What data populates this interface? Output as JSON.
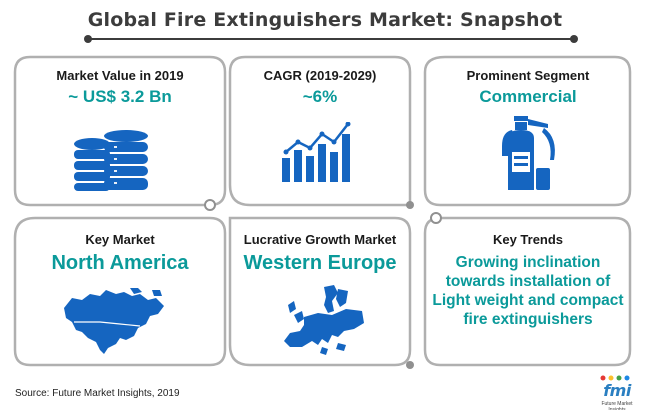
{
  "title": "Global Fire Extinguishers Market: Snapshot",
  "cards": [
    {
      "label": "Market Value in 2019",
      "value": "~ US$ 3.2 Bn",
      "icon": "database-stack-icon"
    },
    {
      "label": "CAGR (2019-2029)",
      "value": "~6%",
      "icon": "bar-chart-growth-icon"
    },
    {
      "label": "Prominent Segment",
      "value": "Commercial",
      "icon": "fire-extinguisher-icon"
    },
    {
      "label": "Key Market",
      "value": "North America",
      "icon": "north-america-map-icon"
    },
    {
      "label": "Lucrative Growth Market",
      "value": "Western Europe",
      "icon": "europe-map-icon"
    },
    {
      "label": "Key Trends",
      "value": "Growing inclination towards installation of Light weight and compact fire extinguishers"
    }
  ],
  "source": "Source: Future Market Insights, 2019",
  "logo": {
    "text": "fmi",
    "subtext": "Future Market Insights"
  },
  "colors": {
    "accent": "#0b9a9a",
    "icon_blue": "#1565c0",
    "frame_gray": "#b0b0b0",
    "title": "#3c3c3c"
  }
}
